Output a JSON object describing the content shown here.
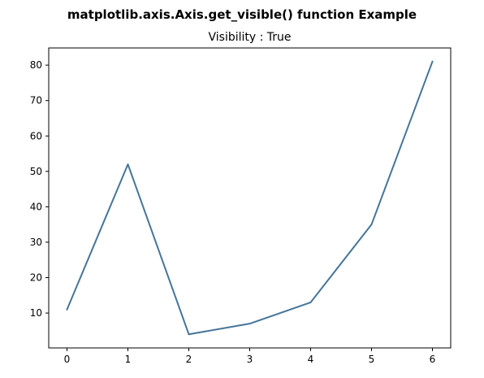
{
  "figure": {
    "suptitle": "matplotlib.axis.Axis.get_visible() function Example"
  },
  "chart_data": {
    "type": "line",
    "title": "Visibility : True",
    "xlabel": "",
    "ylabel": "",
    "x": [
      0,
      1,
      2,
      3,
      4,
      5,
      6
    ],
    "series": [
      {
        "values": [
          11,
          52,
          4,
          7,
          13,
          35,
          81
        ],
        "color": "#45759a"
      }
    ],
    "xlim": [
      -0.3,
      6.3
    ],
    "ylim": [
      0.15,
      84.85
    ],
    "xticks": [
      0,
      1,
      2,
      3,
      4,
      5,
      6
    ],
    "yticks": [
      10,
      20,
      30,
      40,
      50,
      60,
      70,
      80
    ],
    "grid": false,
    "legend": "none"
  }
}
